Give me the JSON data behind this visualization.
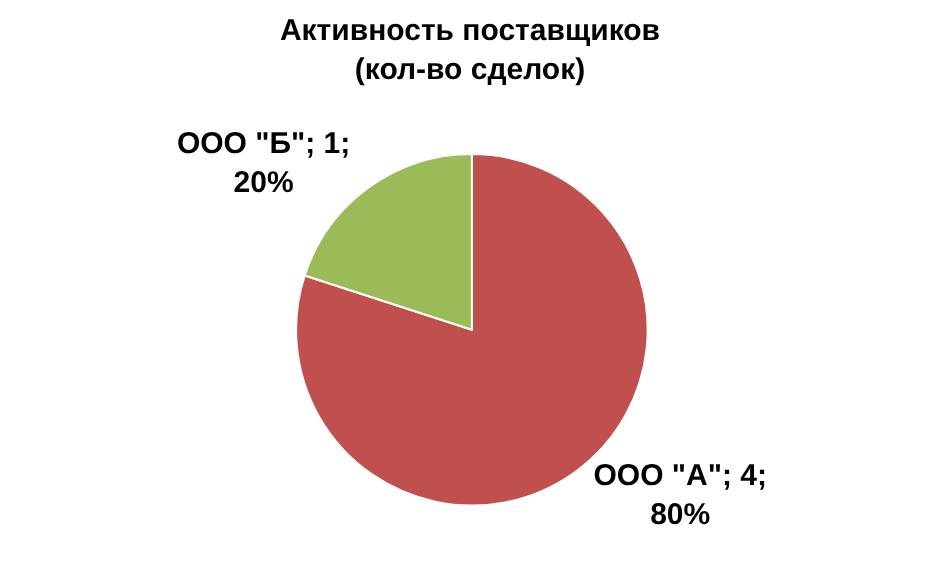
{
  "chart_data": {
    "type": "pie",
    "title": "Активность поставщиков\n(кол-во сделок)",
    "categories": [
      "ООО \"А\"",
      "ООО \"Б\""
    ],
    "values": [
      4,
      1
    ],
    "colors": [
      "#c0504d",
      "#9bbb59"
    ],
    "value_labels": [
      "; 4; 80%",
      "; 1; 20%"
    ],
    "legend": false
  }
}
